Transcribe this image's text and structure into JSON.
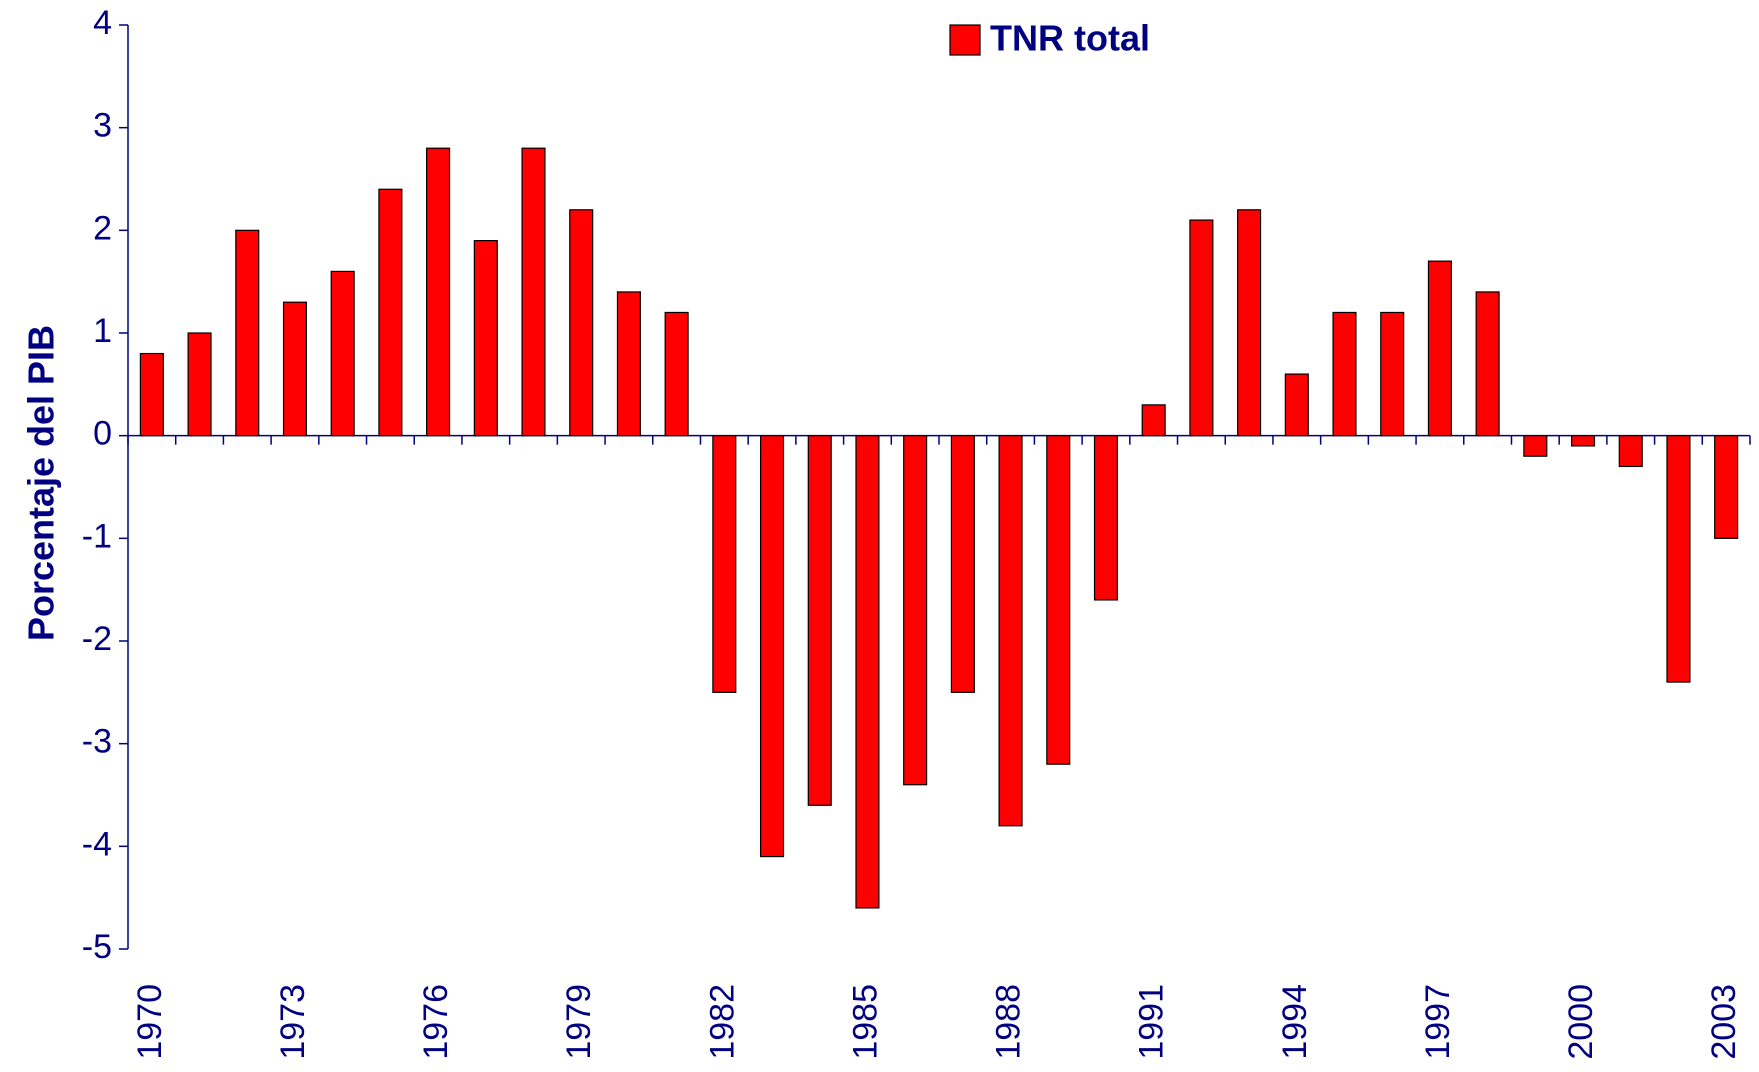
{
  "chart_data": {
    "type": "bar",
    "categories": [
      "1970",
      null,
      null,
      "1973",
      null,
      null,
      "1976",
      null,
      null,
      "1979",
      null,
      null,
      "1982",
      null,
      null,
      "1985",
      null,
      null,
      "1988",
      null,
      null,
      "1991",
      null,
      null,
      "1994",
      null,
      null,
      "1997",
      null,
      null,
      "2000",
      null,
      null,
      "2003"
    ],
    "series": [
      {
        "name": "TNR total",
        "color": "#ff0000",
        "values": [
          0.8,
          1.0,
          2.0,
          1.3,
          1.6,
          2.4,
          2.8,
          1.9,
          2.8,
          2.2,
          1.4,
          1.2,
          -2.5,
          -4.1,
          -3.6,
          -4.6,
          -3.4,
          -2.5,
          -3.8,
          -3.2,
          -1.6,
          0.3,
          2.1,
          2.2,
          0.6,
          1.2,
          1.2,
          1.7,
          1.4,
          -0.2,
          -0.1,
          -0.3,
          -2.4,
          -1.0
        ]
      }
    ],
    "y_label": "Porcentaje del PIB",
    "ylim": [
      -5,
      4
    ],
    "yticks": [
      -5,
      -4,
      -3,
      -2,
      -1,
      0,
      1,
      2,
      3,
      4
    ],
    "legend": "top"
  }
}
